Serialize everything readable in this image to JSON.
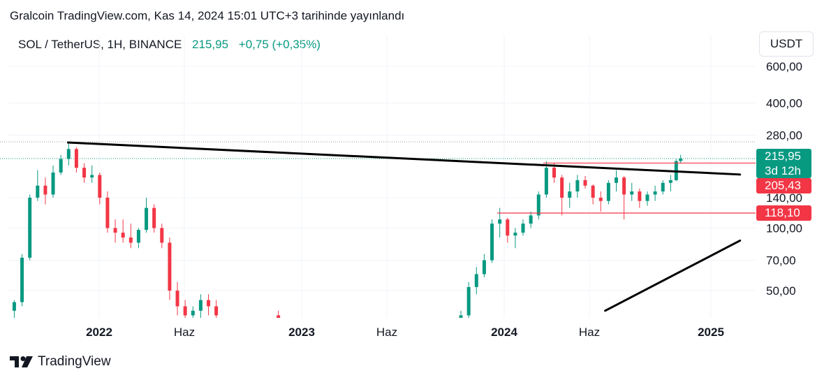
{
  "header": {
    "published": "Gralcoin TradingView.com, Kas 14, 2024 15:01 UTC+3 tarihinde yayınlandı"
  },
  "symbol": {
    "pair": "SOL / TetherUS, 1H, BINANCE",
    "last_price": "215,95",
    "change": "+0,75 (+0,35%)"
  },
  "currency_button": "USDT",
  "price_labels": {
    "current": "215,95",
    "countdown": "3d 12h",
    "resistance": "205,43",
    "support": "118,10"
  },
  "footer": {
    "brand": "TradingView"
  },
  "colors": {
    "up": "#089981",
    "down": "#f23645",
    "badge_green": "#089981",
    "badge_red": "#f23645",
    "trendline": "#000000"
  },
  "chart_data": {
    "type": "candlestick",
    "title": "",
    "scale": "log",
    "y_ticks": [
      "600,00",
      "400,00",
      "280,00",
      "140,00",
      "100,00",
      "70,00",
      "50,00"
    ],
    "x_ticks": [
      "2022",
      "Haz",
      "2023",
      "Haz",
      "2024",
      "Haz",
      "2025"
    ],
    "ylim": [
      40,
      700
    ],
    "grid": true,
    "horizontal_levels": [
      {
        "label": "205,43",
        "value": 205.43,
        "color": "#f23645"
      },
      {
        "label": "118,10",
        "value": 118.1,
        "color": "#f23645"
      }
    ],
    "trendlines": [
      {
        "from": [
          "2021-11-06",
          258
        ],
        "to": [
          "2025-03-01",
          181
        ]
      },
      {
        "from": [
          "2024-07-01",
          40
        ],
        "to": [
          "2025-03-01",
          87
        ]
      }
    ],
    "series": [
      {
        "values": [
          [
            "2021-08-01",
            40,
            45,
            33,
            44
          ],
          [
            "2021-08-15",
            44,
            75,
            42,
            72
          ],
          [
            "2021-08-29",
            72,
            145,
            70,
            140
          ],
          [
            "2021-09-12",
            140,
            190,
            135,
            160
          ],
          [
            "2021-09-26",
            160,
            175,
            130,
            145
          ],
          [
            "2021-10-10",
            145,
            200,
            140,
            185
          ],
          [
            "2021-10-24",
            185,
            225,
            180,
            215
          ],
          [
            "2021-11-07",
            215,
            260,
            200,
            240
          ],
          [
            "2021-11-21",
            240,
            245,
            185,
            195
          ],
          [
            "2021-12-05",
            195,
            205,
            165,
            175
          ],
          [
            "2021-12-19",
            175,
            200,
            165,
            180
          ],
          [
            "2022-01-02",
            180,
            185,
            130,
            140
          ],
          [
            "2022-01-16",
            140,
            150,
            95,
            100
          ],
          [
            "2022-01-30",
            100,
            110,
            85,
            95
          ],
          [
            "2022-02-13",
            95,
            110,
            85,
            90
          ],
          [
            "2022-02-27",
            90,
            105,
            80,
            85
          ],
          [
            "2022-03-13",
            85,
            100,
            80,
            98
          ],
          [
            "2022-03-27",
            98,
            140,
            95,
            125
          ],
          [
            "2022-04-10",
            125,
            130,
            95,
            100
          ],
          [
            "2022-04-24",
            100,
            105,
            80,
            85
          ],
          [
            "2022-05-08",
            85,
            90,
            45,
            50
          ],
          [
            "2022-05-22",
            50,
            55,
            38,
            42
          ],
          [
            "2022-06-05",
            42,
            45,
            33,
            38
          ],
          [
            "2022-06-19",
            38,
            42,
            34,
            40
          ],
          [
            "2022-07-03",
            40,
            48,
            36,
            45
          ],
          [
            "2022-07-17",
            45,
            48,
            38,
            42
          ],
          [
            "2022-07-31",
            42,
            45,
            36,
            38
          ],
          [
            "2022-11-20",
            38,
            40,
            30,
            33
          ],
          [
            "2023-01-01",
            33,
            36,
            30,
            35
          ],
          [
            "2023-10-15",
            30,
            40,
            28,
            38
          ],
          [
            "2023-10-29",
            38,
            55,
            36,
            52
          ],
          [
            "2023-11-12",
            52,
            65,
            48,
            60
          ],
          [
            "2023-11-26",
            60,
            75,
            58,
            70
          ],
          [
            "2023-12-10",
            70,
            110,
            68,
            105
          ],
          [
            "2023-12-24",
            105,
            125,
            90,
            110
          ],
          [
            "2024-01-07",
            110,
            112,
            85,
            92
          ],
          [
            "2024-01-21",
            92,
            100,
            80,
            95
          ],
          [
            "2024-02-04",
            95,
            110,
            92,
            105
          ],
          [
            "2024-02-18",
            105,
            120,
            100,
            115
          ],
          [
            "2024-03-03",
            115,
            150,
            110,
            145
          ],
          [
            "2024-03-17",
            145,
            210,
            140,
            195
          ],
          [
            "2024-03-31",
            195,
            205,
            165,
            175
          ],
          [
            "2024-04-14",
            175,
            180,
            115,
            140
          ],
          [
            "2024-04-28",
            140,
            165,
            125,
            150
          ],
          [
            "2024-05-12",
            150,
            180,
            140,
            170
          ],
          [
            "2024-05-26",
            170,
            178,
            155,
            160
          ],
          [
            "2024-06-09",
            160,
            162,
            130,
            140
          ],
          [
            "2024-06-23",
            140,
            150,
            120,
            135
          ],
          [
            "2024-07-07",
            135,
            170,
            130,
            165
          ],
          [
            "2024-07-21",
            165,
            190,
            150,
            175
          ],
          [
            "2024-08-04",
            175,
            178,
            110,
            145
          ],
          [
            "2024-08-18",
            145,
            165,
            135,
            150
          ],
          [
            "2024-09-01",
            150,
            155,
            125,
            135
          ],
          [
            "2024-09-15",
            135,
            150,
            128,
            145
          ],
          [
            "2024-09-29",
            145,
            160,
            135,
            150
          ],
          [
            "2024-10-13",
            150,
            170,
            145,
            165
          ],
          [
            "2024-10-27",
            165,
            180,
            150,
            170
          ],
          [
            "2024-11-06",
            170,
            215,
            168,
            210
          ],
          [
            "2024-11-14",
            210,
            225,
            205,
            216
          ]
        ]
      }
    ]
  }
}
